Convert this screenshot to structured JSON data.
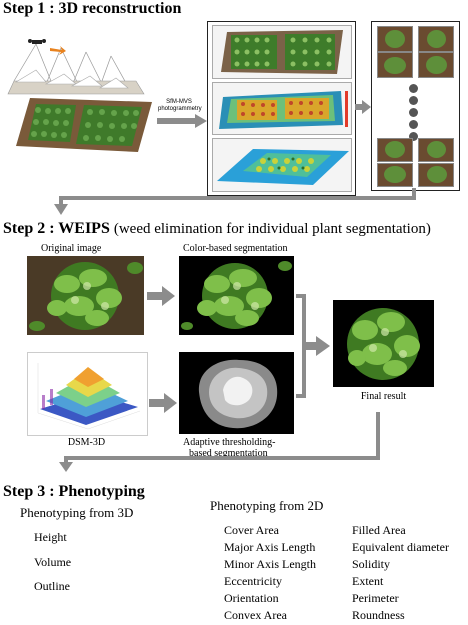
{
  "step1": {
    "title": "Step 1 : 3D reconstruction",
    "process": "SfM-MVS photogrammetry"
  },
  "step2": {
    "title_bold": "Step 2 : WEIPS",
    "title_rest": "(weed elimination for individual plant segmentation)",
    "original": "Original image",
    "color_seg": "Color-based segmentation",
    "dsm": "DSM-3D",
    "adaptive_line1": "Adaptive thresholding-",
    "adaptive_line2": "based segmentation",
    "final": "Final result"
  },
  "step3": {
    "title": "Step 3 : Phenotyping",
    "from3d_title": "Phenotyping from 3D",
    "from3d_items": [
      "Height",
      "Volume",
      "Outline"
    ],
    "from2d_title": "Phenotyping from 2D",
    "from2d_col1": [
      "Cover Area",
      "Major Axis Length",
      "Minor Axis Length",
      "Eccentricity",
      "Orientation",
      "Convex Area"
    ],
    "from2d_col2": [
      "Filled Area",
      "Equivalent diameter",
      "Solidity",
      "Extent",
      "Perimeter",
      "Roundness"
    ]
  },
  "colors": {
    "arrow": "#8c8c8c",
    "plant": "#5e8f3a",
    "soil": "#7a5a3a",
    "canopy_dark": "#2f5a1a"
  }
}
